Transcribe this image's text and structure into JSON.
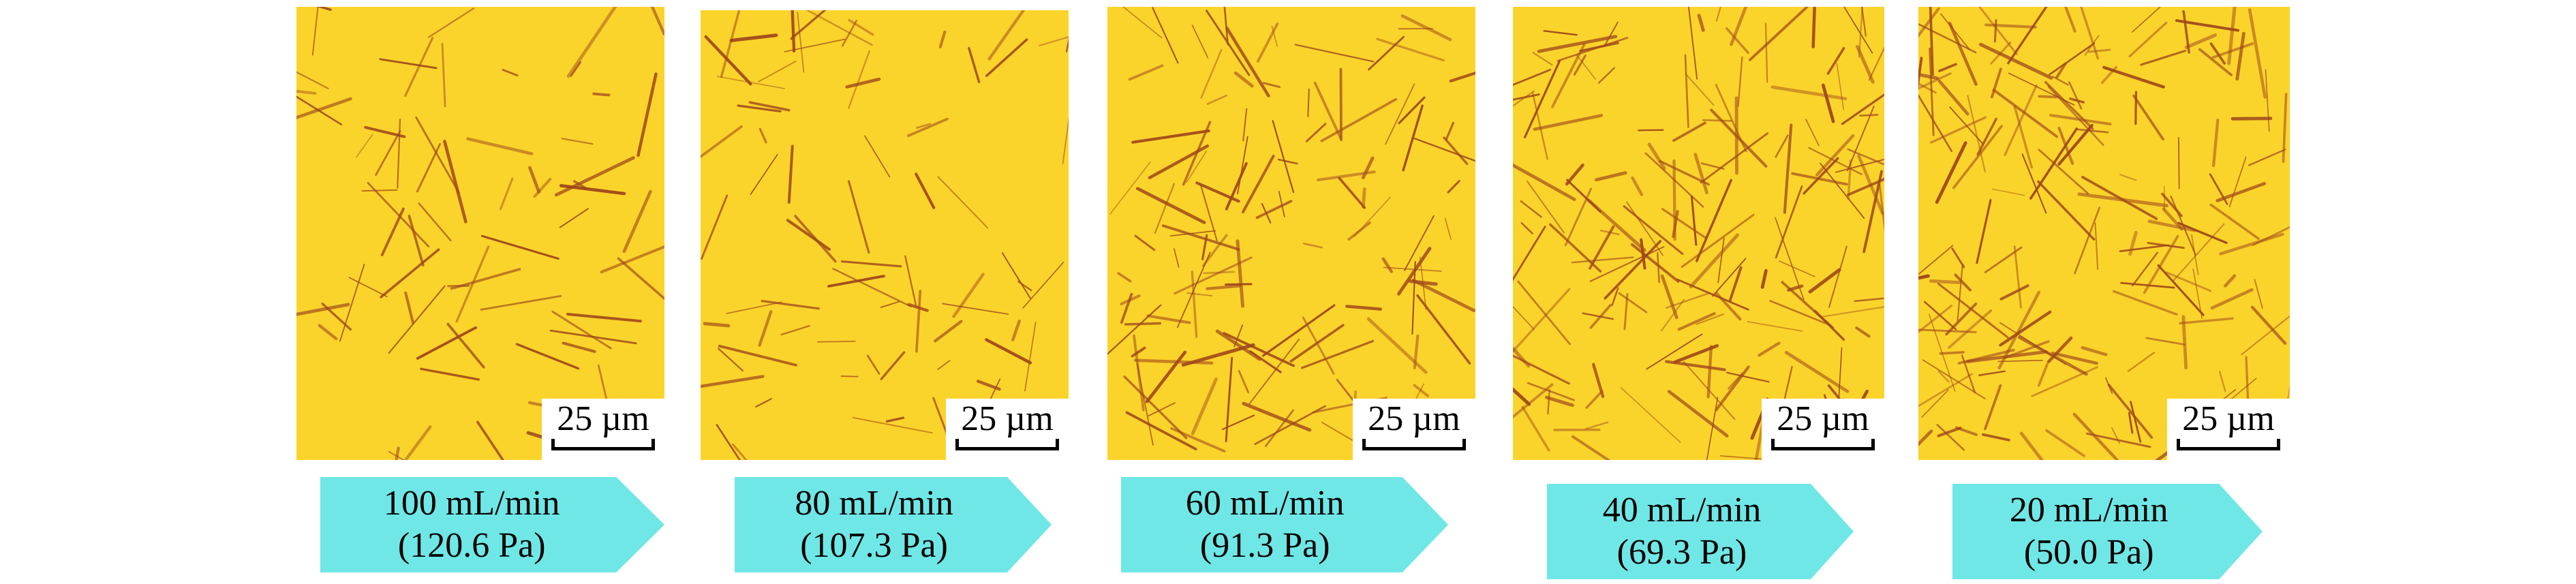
{
  "colors": {
    "micrograph_background": "#fbd42b",
    "fiber": "#a0471a",
    "arrow_fill": "#6fe7e6"
  },
  "panels": [
    {
      "scale_label": "25 µm",
      "flow_rate": "100 mL/min",
      "pressure": "(120.6 Pa)",
      "fiber_density": "low"
    },
    {
      "scale_label": "25 µm",
      "flow_rate": "80 mL/min",
      "pressure": "(107.3 Pa)",
      "fiber_density": "low"
    },
    {
      "scale_label": "25 µm",
      "flow_rate": "60 mL/min",
      "pressure": "(91.3 Pa)",
      "fiber_density": "medium"
    },
    {
      "scale_label": "25 µm",
      "flow_rate": "40 mL/min",
      "pressure": "(69.3 Pa)",
      "fiber_density": "high"
    },
    {
      "scale_label": "25 µm",
      "flow_rate": "20 mL/min",
      "pressure": "(50.0 Pa)",
      "fiber_density": "high"
    }
  ]
}
